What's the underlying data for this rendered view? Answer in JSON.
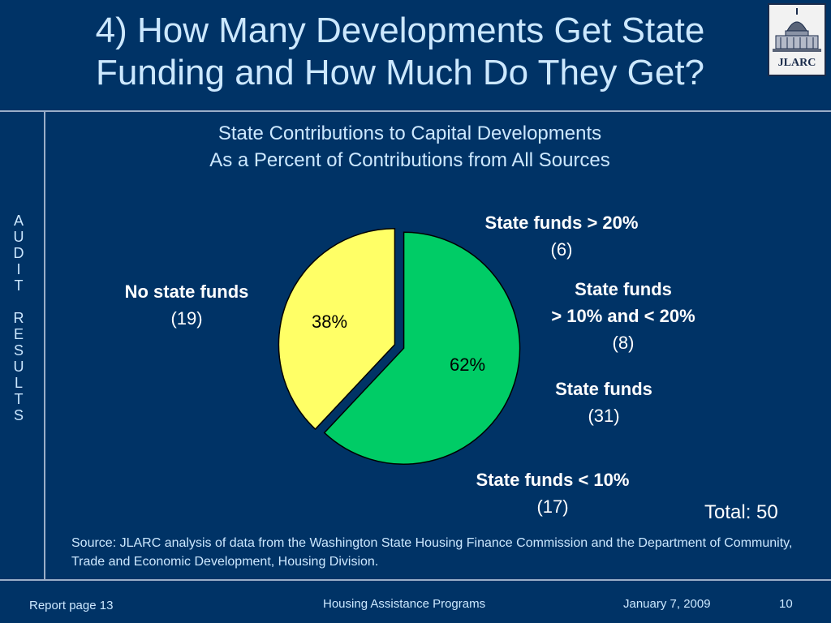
{
  "header": {
    "title_line_1": "4)  How Many Developments Get State",
    "title_line_2": "Funding and How Much Do They Get?",
    "logo_text": "JLARC"
  },
  "sidebar": {
    "letters": [
      "A",
      "U",
      "D",
      "I",
      "T",
      "",
      "R",
      "E",
      "S",
      "U",
      "L",
      "T",
      "S"
    ]
  },
  "chart_data": {
    "type": "pie",
    "title": "State Contributions to Capital Developments",
    "subtitle": "As a Percent of Contributions from All Sources",
    "slices": [
      {
        "label": "State funds",
        "count": "(31)",
        "percent": 62,
        "percent_label": "62%",
        "color": "#00cc66"
      },
      {
        "label": "No state funds",
        "count": "(19)",
        "percent": 38,
        "percent_label": "38%",
        "color": "#ffff66"
      }
    ],
    "breakdown": [
      {
        "label": "State funds > 20%",
        "count": "(6)"
      },
      {
        "label_line_1": "State funds",
        "label_line_2": "> 10% and < 20%",
        "count": "(8)"
      },
      {
        "label": "State funds < 10%",
        "count": "(17)"
      }
    ],
    "total_label": "Total: 50"
  },
  "source": "Source:  JLARC analysis of data from the Washington State Housing Finance Commission and the Department of Community, Trade and Economic Development, Housing Division.",
  "footer": {
    "report_page": "Report page 13",
    "program": "Housing Assistance Programs",
    "date": "January 7, 2009",
    "page_number": "10"
  }
}
